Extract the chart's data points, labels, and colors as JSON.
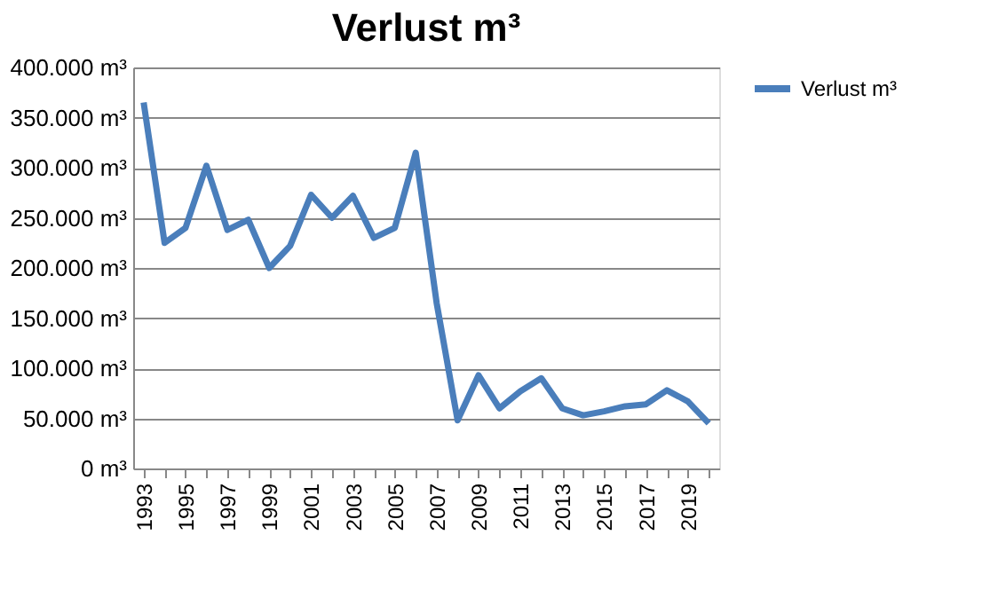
{
  "chart_data": {
    "type": "line",
    "title": "Verlust m³",
    "categories": [
      "1993",
      null,
      "1995",
      null,
      "1997",
      null,
      "1999",
      null,
      "2001",
      null,
      "2003",
      null,
      "2005",
      null,
      "2007",
      null,
      "2009",
      null,
      "2011",
      null,
      "2013",
      null,
      "2015",
      null,
      "2017",
      null,
      "2019",
      null
    ],
    "series": [
      {
        "name": "Verlust m³",
        "color": "#4a7ebb",
        "values": [
          365000,
          225000,
          240000,
          302000,
          238000,
          248000,
          200000,
          222000,
          273000,
          250000,
          272000,
          230000,
          240000,
          315000,
          165000,
          48000,
          93000,
          60000,
          77000,
          90000,
          60000,
          53000,
          57000,
          62000,
          64000,
          78000,
          67000,
          45000
        ]
      }
    ],
    "ylim": [
      0,
      400000
    ],
    "yticks": [
      {
        "value": 0,
        "label": "0 m³"
      },
      {
        "value": 50000,
        "label": "50.000 m³"
      },
      {
        "value": 100000,
        "label": "100.000 m³"
      },
      {
        "value": 150000,
        "label": "150.000 m³"
      },
      {
        "value": 200000,
        "label": "200.000 m³"
      },
      {
        "value": 250000,
        "label": "250.000 m³"
      },
      {
        "value": 300000,
        "label": "300.000 m³"
      },
      {
        "value": 350000,
        "label": "350.000 m³"
      },
      {
        "value": 400000,
        "label": "400.000 m³"
      }
    ],
    "grid": "y",
    "legend": "right",
    "marker": "none",
    "line_style": "solid"
  }
}
